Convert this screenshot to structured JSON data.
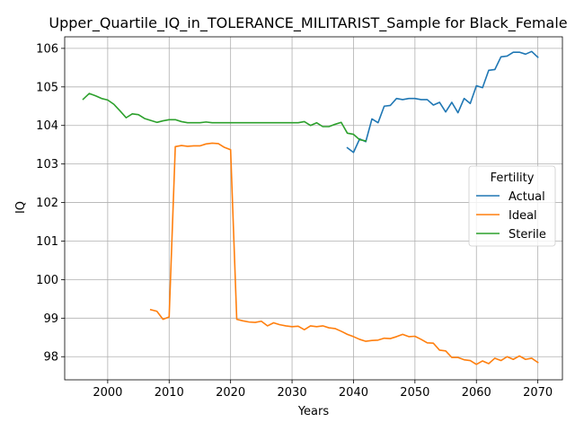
{
  "chart_data": {
    "type": "line",
    "title": "Upper_Quartile_IQ_in_TOLERANCE_MILITARIST_Sample for Black_Female",
    "xlabel": "Years",
    "ylabel": "IQ",
    "xlim": [
      1993,
      2074
    ],
    "ylim": [
      97.4,
      106.3
    ],
    "x_ticks": [
      2000,
      2010,
      2020,
      2030,
      2040,
      2050,
      2060,
      2070
    ],
    "y_ticks": [
      98,
      99,
      100,
      101,
      102,
      103,
      104,
      105,
      106
    ],
    "grid": true,
    "legend": {
      "title": "Fertility",
      "placement": "center-right"
    },
    "series": [
      {
        "name": "Actual",
        "color": "#1f77b4",
        "points": [
          [
            2039,
            103.42
          ],
          [
            2040,
            103.3
          ],
          [
            2041,
            103.65
          ],
          [
            2042,
            103.58
          ],
          [
            2043,
            104.17
          ],
          [
            2044,
            104.07
          ],
          [
            2045,
            104.5
          ],
          [
            2046,
            104.52
          ],
          [
            2047,
            104.7
          ],
          [
            2048,
            104.67
          ],
          [
            2049,
            104.7
          ],
          [
            2050,
            104.7
          ],
          [
            2051,
            104.67
          ],
          [
            2052,
            104.67
          ],
          [
            2053,
            104.53
          ],
          [
            2054,
            104.6
          ],
          [
            2055,
            104.35
          ],
          [
            2056,
            104.6
          ],
          [
            2057,
            104.33
          ],
          [
            2058,
            104.7
          ],
          [
            2059,
            104.57
          ],
          [
            2060,
            105.03
          ],
          [
            2061,
            104.98
          ],
          [
            2062,
            105.43
          ],
          [
            2063,
            105.45
          ],
          [
            2064,
            105.78
          ],
          [
            2065,
            105.8
          ],
          [
            2066,
            105.9
          ],
          [
            2067,
            105.9
          ],
          [
            2068,
            105.85
          ],
          [
            2069,
            105.92
          ],
          [
            2070,
            105.77
          ]
        ]
      },
      {
        "name": "Ideal",
        "color": "#ff7f0e",
        "points": [
          [
            2007,
            99.22
          ],
          [
            2008,
            99.18
          ],
          [
            2009,
            98.97
          ],
          [
            2010,
            99.03
          ],
          [
            2011,
            103.45
          ],
          [
            2012,
            103.48
          ],
          [
            2013,
            103.46
          ],
          [
            2014,
            103.47
          ],
          [
            2015,
            103.47
          ],
          [
            2016,
            103.52
          ],
          [
            2017,
            103.54
          ],
          [
            2018,
            103.53
          ],
          [
            2019,
            103.43
          ],
          [
            2020,
            103.37
          ],
          [
            2021,
            98.97
          ],
          [
            2022,
            98.93
          ],
          [
            2023,
            98.9
          ],
          [
            2024,
            98.89
          ],
          [
            2025,
            98.92
          ],
          [
            2026,
            98.8
          ],
          [
            2027,
            98.88
          ],
          [
            2028,
            98.83
          ],
          [
            2029,
            98.8
          ],
          [
            2030,
            98.78
          ],
          [
            2031,
            98.79
          ],
          [
            2032,
            98.7
          ],
          [
            2033,
            98.8
          ],
          [
            2034,
            98.78
          ],
          [
            2035,
            98.8
          ],
          [
            2036,
            98.75
          ],
          [
            2037,
            98.73
          ],
          [
            2038,
            98.66
          ],
          [
            2039,
            98.58
          ],
          [
            2040,
            98.52
          ],
          [
            2041,
            98.45
          ],
          [
            2042,
            98.4
          ],
          [
            2043,
            98.42
          ],
          [
            2044,
            98.43
          ],
          [
            2045,
            98.48
          ],
          [
            2046,
            98.47
          ],
          [
            2047,
            98.52
          ],
          [
            2048,
            98.58
          ],
          [
            2049,
            98.52
          ],
          [
            2050,
            98.53
          ],
          [
            2051,
            98.45
          ],
          [
            2052,
            98.36
          ],
          [
            2053,
            98.35
          ],
          [
            2054,
            98.17
          ],
          [
            2055,
            98.15
          ],
          [
            2056,
            97.98
          ],
          [
            2057,
            97.98
          ],
          [
            2058,
            97.92
          ],
          [
            2059,
            97.9
          ],
          [
            2060,
            97.8
          ],
          [
            2061,
            97.89
          ],
          [
            2062,
            97.82
          ],
          [
            2063,
            97.96
          ],
          [
            2064,
            97.9
          ],
          [
            2065,
            98.0
          ],
          [
            2066,
            97.93
          ],
          [
            2067,
            98.02
          ],
          [
            2068,
            97.93
          ],
          [
            2069,
            97.96
          ],
          [
            2070,
            97.85
          ]
        ]
      },
      {
        "name": "Sterile",
        "color": "#2ca02c",
        "points": [
          [
            1996,
            104.68
          ],
          [
            1997,
            104.83
          ],
          [
            1998,
            104.77
          ],
          [
            1999,
            104.7
          ],
          [
            2000,
            104.66
          ],
          [
            2001,
            104.55
          ],
          [
            2002,
            104.38
          ],
          [
            2003,
            104.2
          ],
          [
            2004,
            104.3
          ],
          [
            2005,
            104.28
          ],
          [
            2006,
            104.18
          ],
          [
            2007,
            104.13
          ],
          [
            2008,
            104.08
          ],
          [
            2009,
            104.12
          ],
          [
            2010,
            104.15
          ],
          [
            2011,
            104.15
          ],
          [
            2012,
            104.1
          ],
          [
            2013,
            104.07
          ],
          [
            2014,
            104.07
          ],
          [
            2015,
            104.07
          ],
          [
            2016,
            104.09
          ],
          [
            2017,
            104.07
          ],
          [
            2018,
            104.07
          ],
          [
            2019,
            104.07
          ],
          [
            2020,
            104.07
          ],
          [
            2021,
            104.07
          ],
          [
            2022,
            104.07
          ],
          [
            2023,
            104.07
          ],
          [
            2024,
            104.07
          ],
          [
            2025,
            104.07
          ],
          [
            2026,
            104.07
          ],
          [
            2027,
            104.07
          ],
          [
            2028,
            104.07
          ],
          [
            2029,
            104.07
          ],
          [
            2030,
            104.07
          ],
          [
            2031,
            104.07
          ],
          [
            2032,
            104.1
          ],
          [
            2033,
            104.0
          ],
          [
            2034,
            104.07
          ],
          [
            2035,
            103.97
          ],
          [
            2036,
            103.97
          ],
          [
            2037,
            104.03
          ],
          [
            2038,
            104.08
          ],
          [
            2039,
            103.8
          ],
          [
            2040,
            103.77
          ],
          [
            2041,
            103.63
          ],
          [
            2042,
            103.6
          ]
        ]
      }
    ]
  }
}
